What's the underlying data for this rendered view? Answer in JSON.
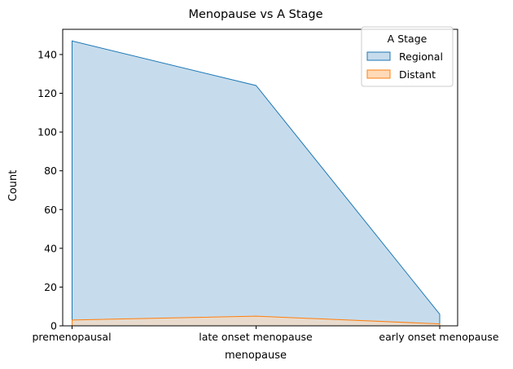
{
  "chart_data": {
    "type": "area",
    "title": "Menopause vs A Stage",
    "xlabel": "menopause",
    "ylabel": "Count",
    "categories": [
      "premenopausal",
      "late onset menopause",
      "early onset menopause"
    ],
    "ylim": [
      0,
      153
    ],
    "yticks": [
      0,
      20,
      40,
      60,
      80,
      100,
      120,
      140
    ],
    "grid": false,
    "legend": {
      "title": "A Stage",
      "placement": "top-right"
    },
    "series": [
      {
        "name": "Regional",
        "values": [
          147,
          124,
          6
        ],
        "color": "#1f77b4",
        "fill": "#c6dced"
      },
      {
        "name": "Distant",
        "values": [
          3,
          5,
          1
        ],
        "color": "#ff7f0e",
        "fill": "#ffdab8"
      }
    ]
  }
}
